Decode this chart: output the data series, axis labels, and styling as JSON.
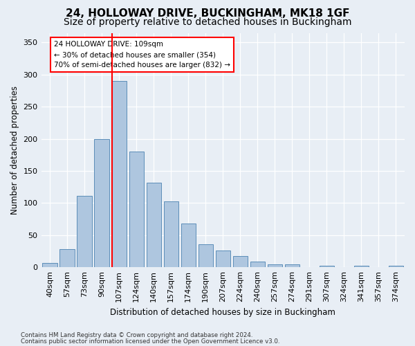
{
  "title": "24, HOLLOWAY DRIVE, BUCKINGHAM, MK18 1GF",
  "subtitle": "Size of property relative to detached houses in Buckingham",
  "xlabel": "Distribution of detached houses by size in Buckingham",
  "ylabel": "Number of detached properties",
  "footnote1": "Contains HM Land Registry data © Crown copyright and database right 2024.",
  "footnote2": "Contains public sector information licensed under the Open Government Licence v3.0.",
  "categories": [
    "40sqm",
    "57sqm",
    "73sqm",
    "90sqm",
    "107sqm",
    "124sqm",
    "140sqm",
    "157sqm",
    "174sqm",
    "190sqm",
    "207sqm",
    "224sqm",
    "240sqm",
    "257sqm",
    "274sqm",
    "291sqm",
    "307sqm",
    "324sqm",
    "341sqm",
    "357sqm",
    "374sqm"
  ],
  "values": [
    7,
    28,
    111,
    200,
    290,
    180,
    132,
    103,
    68,
    36,
    26,
    17,
    9,
    5,
    4,
    0,
    2,
    0,
    2,
    0,
    2
  ],
  "bar_color": "#aec6df",
  "bar_edge_color": "#5b8db8",
  "annotation_title": "24 HOLLOWAY DRIVE: 109sqm",
  "annotation_line1": "← 30% of detached houses are smaller (354)",
  "annotation_line2": "70% of semi-detached houses are larger (832) →",
  "annotation_box_color": "white",
  "annotation_box_edge": "red",
  "ylim": [
    0,
    365
  ],
  "yticks": [
    0,
    50,
    100,
    150,
    200,
    250,
    300,
    350
  ],
  "background_color": "#e8eef5",
  "grid_color": "white",
  "title_fontsize": 11,
  "subtitle_fontsize": 10,
  "red_line_index": 4
}
